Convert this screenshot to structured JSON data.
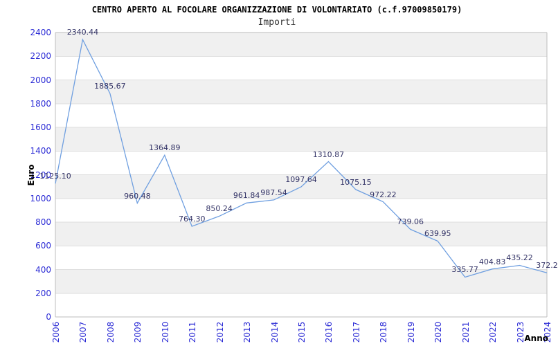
{
  "header": {
    "title": "CENTRO APERTO AL FOCOLARE ORGANIZZAZIONE DI VOLONTARIATO (c.f.97009850179)",
    "subtitle": "Importi"
  },
  "chart_data": {
    "type": "line",
    "title": "CENTRO APERTO AL FOCOLARE ORGANIZZAZIONE DI VOLONTARIATO (c.f.97009850179)",
    "subtitle": "Importi",
    "xlabel": "Anno",
    "ylabel": "Euro",
    "categories": [
      "2006",
      "2007",
      "2008",
      "2009",
      "2010",
      "2011",
      "2012",
      "2013",
      "2014",
      "2015",
      "2016",
      "2017",
      "2018",
      "2019",
      "2020",
      "2021",
      "2022",
      "2023",
      "2024"
    ],
    "series": [
      {
        "name": "Importi",
        "values": [
          1125.1,
          2340.44,
          1885.67,
          960.48,
          1364.89,
          764.3,
          850.24,
          961.84,
          987.54,
          1097.64,
          1310.87,
          1075.15,
          972.22,
          739.06,
          639.95,
          335.77,
          404.83,
          435.22,
          372.2
        ]
      }
    ],
    "point_labels": [
      "1125.10",
      "2340.44",
      "1885.67",
      "960.48",
      "1364.89",
      "764.30",
      "850.24",
      "961.84",
      "987.54",
      "1097.64",
      "1310.87",
      "1075.15",
      "972.22",
      "739.06",
      "639.95",
      "335.77",
      "404.83",
      "435.22",
      "372.2"
    ],
    "ylim": [
      0,
      2400
    ],
    "ytick_step": 200,
    "ytick_labels": [
      "0",
      "200",
      "400",
      "600",
      "800",
      "1000",
      "1200",
      "1400",
      "1600",
      "1800",
      "2000",
      "2200",
      "2400"
    ],
    "legend": "none",
    "grid": "horizontal-bands-alternating",
    "colors": {
      "line": "#6f9fe0",
      "tick_label": "#2b2bd5",
      "point_label": "#333366",
      "band": "#f0f0f0",
      "gridline": "#dedede",
      "border": "#bdbdbd",
      "title": "#000000",
      "subtitle": "#333333",
      "background": "#ffffff"
    }
  }
}
